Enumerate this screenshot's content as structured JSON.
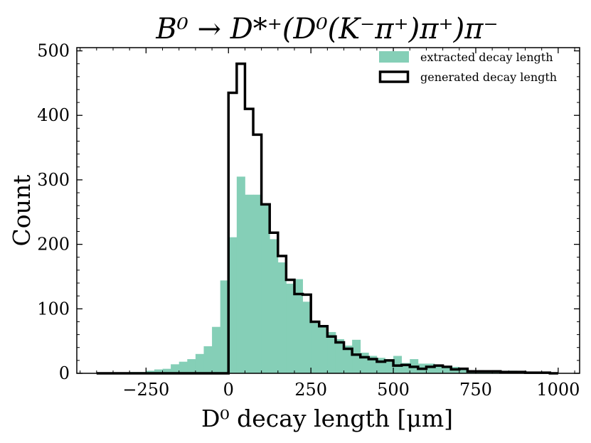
{
  "chart_data": {
    "type": "histogram",
    "title": "B⁰ → D*⁺(D⁰(K⁻π⁺)π⁺)π⁻",
    "xlabel": "D⁰ decay length [μm]",
    "ylabel": "Count",
    "xlim": [
      -460,
      1065
    ],
    "ylim": [
      0,
      505
    ],
    "xticks": [
      -250,
      0,
      250,
      500,
      750,
      1000
    ],
    "xtick_labels": [
      "−250",
      "0",
      "250",
      "500",
      "750",
      "1000"
    ],
    "yticks": [
      0,
      100,
      200,
      300,
      400,
      500
    ],
    "ytick_labels": [
      "0",
      "100",
      "200",
      "300",
      "400",
      "500"
    ],
    "bin_edges": [
      -400,
      -375,
      -350,
      -325,
      -300,
      -275,
      -250,
      -225,
      -200,
      -175,
      -150,
      -125,
      -100,
      -75,
      -50,
      -25,
      0,
      25,
      50,
      75,
      100,
      125,
      150,
      175,
      200,
      225,
      250,
      275,
      300,
      325,
      350,
      375,
      400,
      425,
      450,
      475,
      500,
      525,
      550,
      575,
      600,
      625,
      650,
      675,
      700,
      725,
      750,
      775,
      800,
      825,
      850,
      875,
      900,
      925,
      950,
      975,
      1000
    ],
    "series": [
      {
        "name": "extracted decay length",
        "style": "filled",
        "color": "#85cfb7",
        "values": [
          1,
          1,
          1,
          1,
          2,
          2,
          4,
          6,
          7,
          14,
          18,
          22,
          30,
          42,
          72,
          144,
          211,
          305,
          277,
          277,
          261,
          208,
          172,
          139,
          146,
          111,
          78,
          75,
          64,
          53,
          43,
          52,
          32,
          27,
          24,
          22,
          27,
          16,
          22,
          15,
          15,
          12,
          10,
          10,
          8,
          5,
          5,
          4,
          5,
          3,
          4,
          2,
          2,
          1,
          1,
          0
        ]
      },
      {
        "name": "generated decay length",
        "style": "step",
        "color": "#000000",
        "values": [
          0,
          0,
          0,
          0,
          0,
          0,
          0,
          0,
          0,
          0,
          0,
          0,
          0,
          0,
          0,
          0,
          435,
          480,
          410,
          370,
          262,
          218,
          182,
          145,
          123,
          122,
          80,
          73,
          57,
          48,
          38,
          29,
          25,
          22,
          18,
          20,
          12,
          13,
          10,
          7,
          10,
          12,
          10,
          6,
          7,
          3,
          3,
          3,
          3,
          2,
          2,
          2,
          1,
          1,
          1,
          0
        ]
      }
    ],
    "legend": {
      "position": "top-right",
      "entries": [
        "extracted decay length",
        "generated decay length"
      ]
    }
  }
}
